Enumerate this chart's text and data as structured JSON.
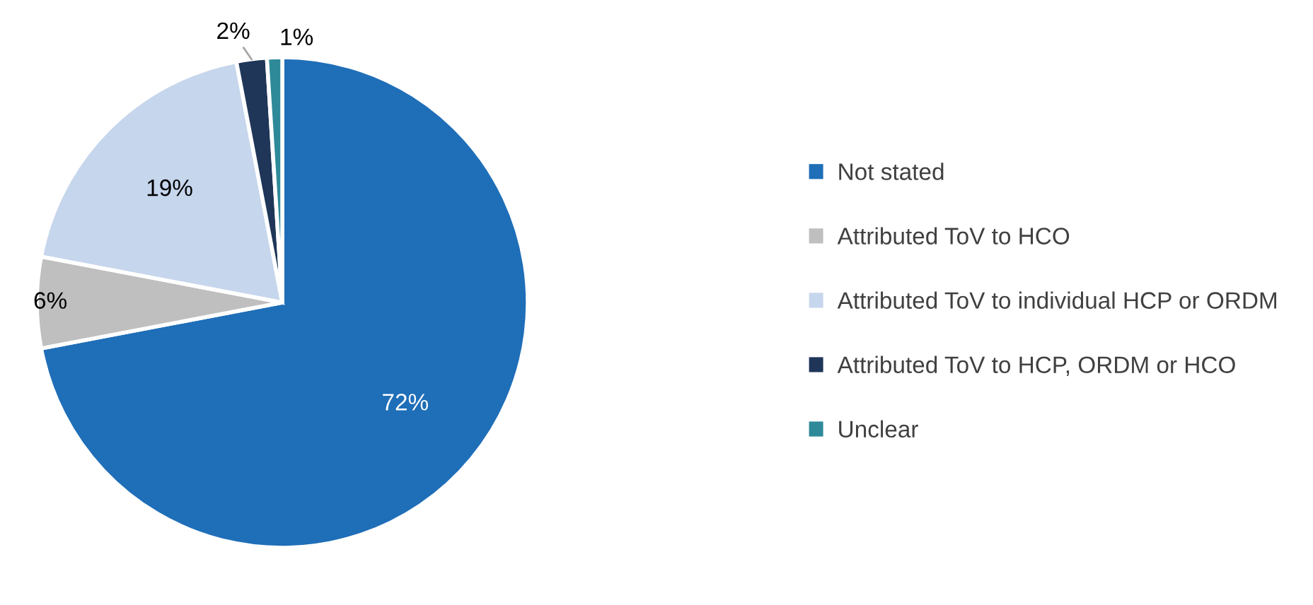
{
  "chart_data": {
    "type": "pie",
    "categories": [
      "Not stated",
      "Attributed ToV to HCO",
      "Attributed ToV to individual HCP or ORDM",
      "Attributed ToV to HCP, ORDM or HCO",
      "Unclear"
    ],
    "values": [
      72,
      6,
      19,
      2,
      1
    ],
    "colors": [
      "#1f6eb8",
      "#bfbfbf",
      "#c6d6ec",
      "#1f3659",
      "#2e8a99"
    ],
    "value_labels": [
      "72%",
      "6%",
      "19%",
      "2%",
      "1%"
    ],
    "legend": "right"
  }
}
